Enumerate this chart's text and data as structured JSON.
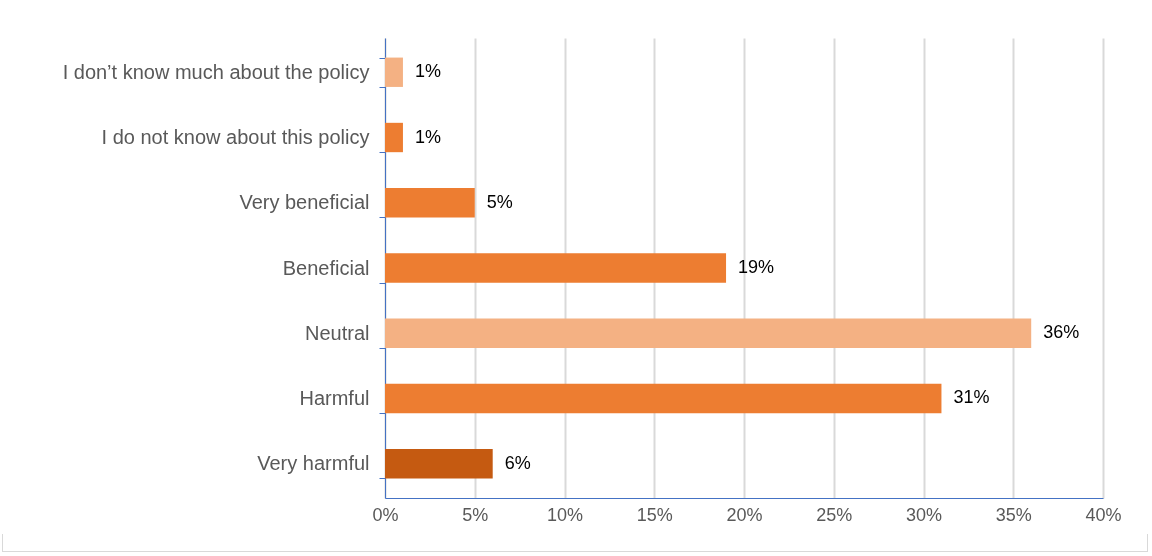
{
  "chart_data": {
    "type": "bar",
    "orientation": "horizontal",
    "categories": [
      "I don’t know much about the policy",
      "I do not know about this policy",
      "Very beneficial",
      "Beneficial",
      "Neutral",
      "Harmful",
      "Very harmful"
    ],
    "values": [
      1,
      1,
      5,
      19,
      36,
      31,
      6
    ],
    "value_labels": [
      "1%",
      "1%",
      "5%",
      "19%",
      "36%",
      "31%",
      "6%"
    ],
    "colors": [
      "#f4b183",
      "#ed7d31",
      "#ed7d31",
      "#ed7d31",
      "#f4b183",
      "#ed7d31",
      "#c55a11"
    ],
    "xlim": [
      0,
      40
    ],
    "xticks": [
      {
        "value": 0,
        "label": "0%"
      },
      {
        "value": 5,
        "label": "5%"
      },
      {
        "value": 10,
        "label": "10%"
      },
      {
        "value": 15,
        "label": "15%"
      },
      {
        "value": 20,
        "label": "20%"
      },
      {
        "value": 25,
        "label": "25%"
      },
      {
        "value": 30,
        "label": "30%"
      },
      {
        "value": 35,
        "label": "35%"
      },
      {
        "value": 40,
        "label": "40%"
      }
    ],
    "grid": "x"
  }
}
